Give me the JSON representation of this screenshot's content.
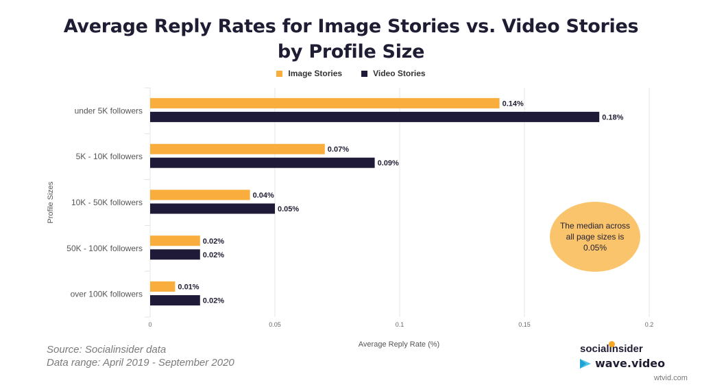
{
  "title_line1": "Average Reply Rates for Image Stories vs. Video Stories",
  "title_line2": "by Profile Size",
  "legend": [
    {
      "label": "Image Stories",
      "color": "#f8ad3c"
    },
    {
      "label": "Video Stories",
      "color": "#1f1a38"
    }
  ],
  "callout": {
    "text": "The median across all page sizes is 0.05%",
    "color": "#f9c46b"
  },
  "source": {
    "line1": "Source: Socialinsider data",
    "line2": "Data range: April 2019 - September 2020"
  },
  "brands": {
    "socialinsider": "socialinsider",
    "wave": "wave.video"
  },
  "watermark": "wtvid.com",
  "chart_data": {
    "type": "bar",
    "orientation": "horizontal",
    "categories": [
      "under 5K followers",
      "5K - 10K followers",
      "10K - 50K followers",
      "50K - 100K followers",
      "over 100K followers"
    ],
    "series": [
      {
        "name": "Image Stories",
        "values": [
          0.14,
          0.07,
          0.04,
          0.02,
          0.01
        ],
        "labels": [
          "0.14%",
          "0.07%",
          "0.04%",
          "0.02%",
          "0.01%"
        ],
        "color": "#f8ad3c"
      },
      {
        "name": "Video Stories",
        "values": [
          0.18,
          0.09,
          0.05,
          0.02,
          0.02
        ],
        "labels": [
          "0.18%",
          "0.09%",
          "0.05%",
          "0.02%",
          "0.02%"
        ],
        "color": "#1f1a38"
      }
    ],
    "xlabel": "Average Reply Rate (%)",
    "ylabel": "Profile Sizes",
    "xlim": [
      0,
      0.2
    ],
    "xticks": [
      0,
      0.05,
      0.1,
      0.15,
      0.2
    ],
    "xtick_labels": [
      "0",
      "0.05",
      "0.1",
      "0.15",
      "0.2"
    ],
    "grid": true,
    "legend_position": "top"
  }
}
